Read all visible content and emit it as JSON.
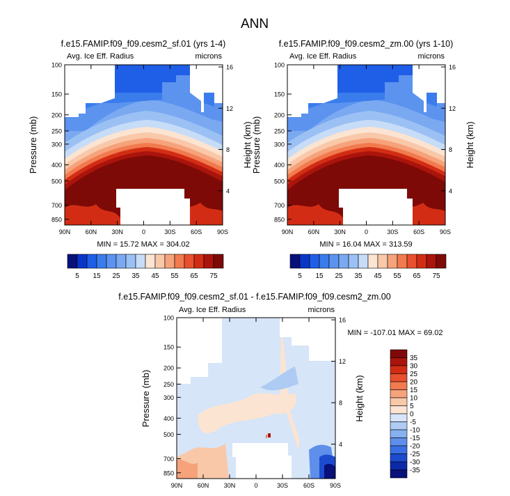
{
  "page_title": "ANN",
  "chart_data": [
    {
      "type": "heatmap",
      "title": "f.e15.FAMIP.f09_f09.cesm2_sf.01 (yrs 1-4)",
      "variable": "Avg. Ice Eff. Radius",
      "units": "microns",
      "xlabel": "",
      "ylabel": "Pressure (mb)",
      "ylabel_right": "Height (km)",
      "xticks": [
        "90N",
        "60N",
        "30N",
        "0",
        "30S",
        "60S",
        "90S"
      ],
      "yticks": [
        "100",
        "150",
        "200",
        "250",
        "300",
        "400",
        "500",
        "700",
        "850"
      ],
      "yticks_right": [
        "16",
        "12",
        "8",
        "4"
      ],
      "stats": "MIN = 15.72  MAX = 304.02",
      "min": 15.72,
      "max": 304.02
    },
    {
      "type": "heatmap",
      "title": "f.e15.FAMIP.f09_f09.cesm2_zm.00 (yrs 1-10)",
      "variable": "Avg. Ice Eff. Radius",
      "units": "microns",
      "xlabel": "",
      "ylabel": "Pressure (mb)",
      "ylabel_right": "Height (km)",
      "xticks": [
        "90N",
        "60N",
        "30N",
        "0",
        "30S",
        "60S",
        "90S"
      ],
      "yticks": [
        "100",
        "150",
        "200",
        "250",
        "300",
        "400",
        "500",
        "700",
        "850"
      ],
      "yticks_right": [
        "16",
        "12",
        "8",
        "4"
      ],
      "stats": "MIN = 16.04  MAX = 313.59",
      "min": 16.04,
      "max": 313.59
    },
    {
      "type": "heatmap",
      "title": "f.e15.FAMIP.f09_f09.cesm2_sf.01 - f.e15.FAMIP.f09_f09.cesm2_zm.00",
      "variable": "Avg. Ice Eff. Radius",
      "units": "microns",
      "xlabel": "",
      "ylabel": "Pressure (mb)",
      "ylabel_right": "Height (km)",
      "xticks": [
        "90N",
        "60N",
        "30N",
        "0",
        "30S",
        "60S",
        "90S"
      ],
      "yticks": [
        "100",
        "150",
        "200",
        "250",
        "300",
        "400",
        "500",
        "700",
        "850"
      ],
      "yticks_right": [
        "16",
        "12",
        "8",
        "4"
      ],
      "stats": "MIN = -107.01  MAX =  69.02",
      "min": -107.01,
      "max": 69.02
    }
  ],
  "colorbar_abs": {
    "labels": [
      "5",
      "15",
      "25",
      "35",
      "45",
      "55",
      "65",
      "75"
    ],
    "colors": [
      "#08107a",
      "#0a36c8",
      "#1f5ee6",
      "#3a7cec",
      "#5b93ef",
      "#7aa9f1",
      "#9bc0f4",
      "#c7dcf7",
      "#fbe4d2",
      "#f9c8a9",
      "#f6a27a",
      "#f17a4f",
      "#e9502d",
      "#d22d14",
      "#aa140c",
      "#7d0a07"
    ]
  },
  "colorbar_diff": {
    "labels": [
      "35",
      "30",
      "25",
      "20",
      "15",
      "10",
      "5",
      "0",
      "-5",
      "-10",
      "-15",
      "-20",
      "-25",
      "-30",
      "-35"
    ],
    "colors": [
      "#7d0a07",
      "#aa140c",
      "#d22d14",
      "#e9502d",
      "#f17a4f",
      "#f6a27a",
      "#f9c8a9",
      "#fbe4d2",
      "#d6e5f8",
      "#aecbf4",
      "#86b0f0",
      "#5e8fea",
      "#3a6fe4",
      "#1c4bd0",
      "#0b2aa6",
      "#08107a"
    ]
  }
}
